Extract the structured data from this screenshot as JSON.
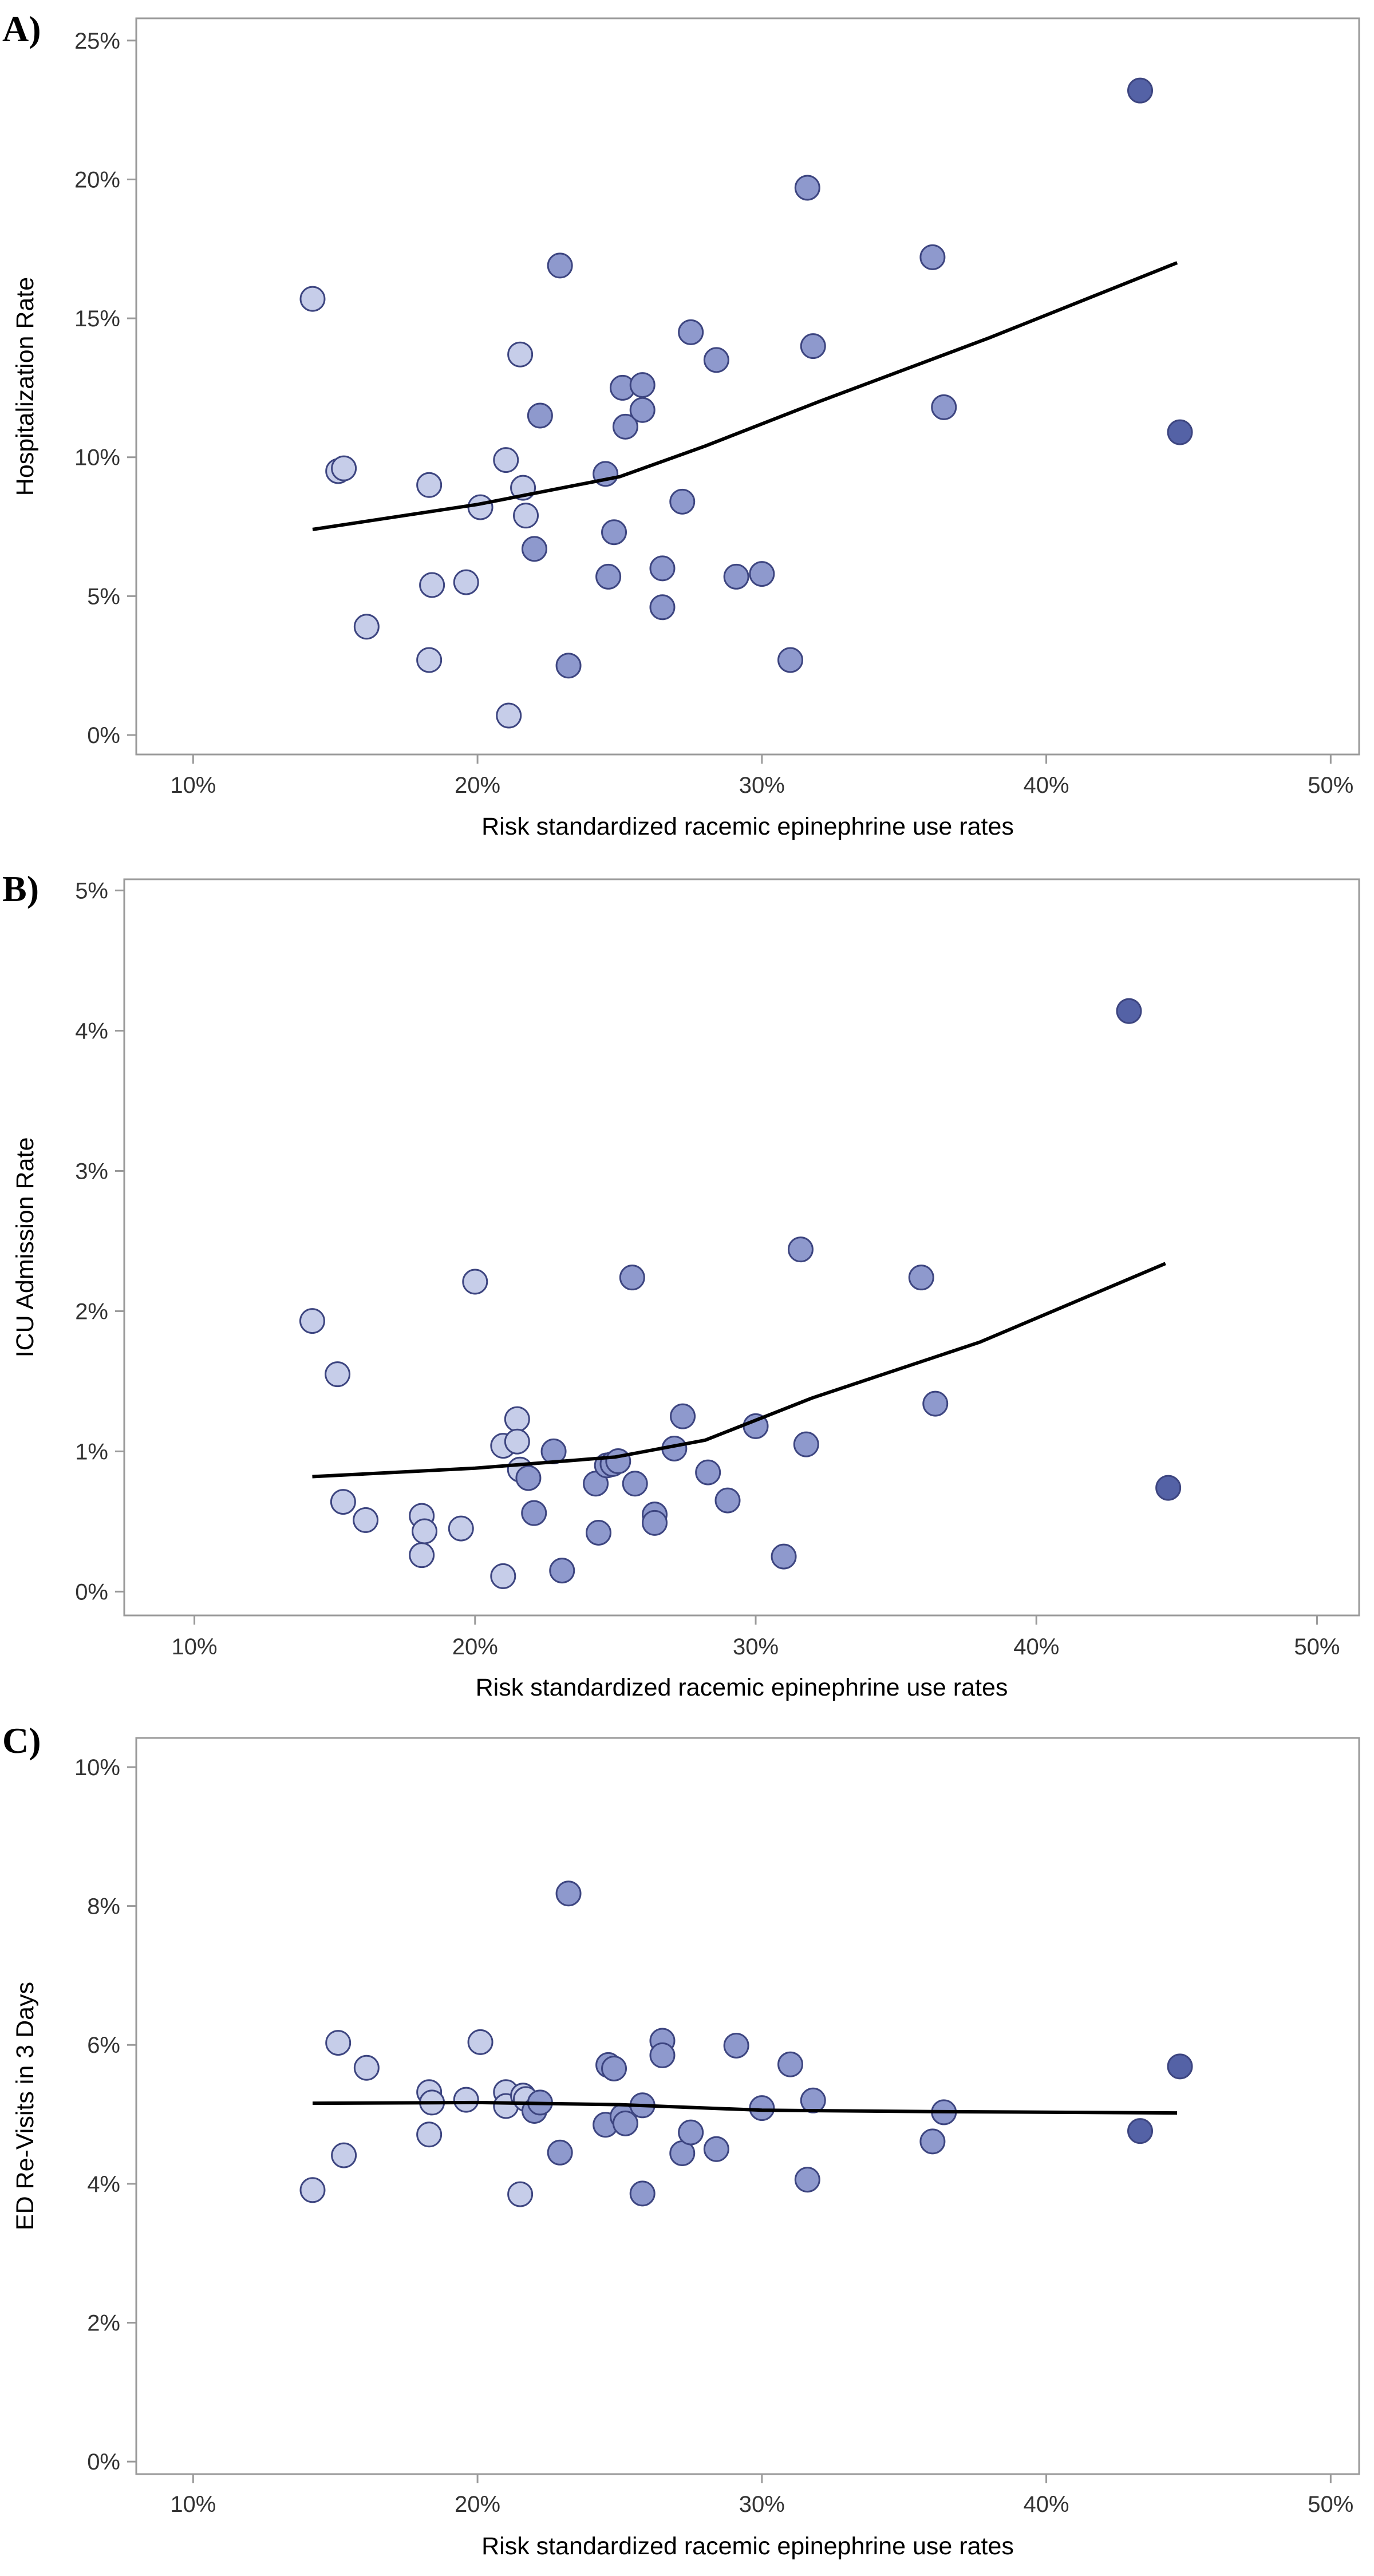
{
  "colors": {
    "light": "#c6cde9",
    "medium": "#8e99cd",
    "dark": "#5462a6",
    "outline": "#3d4580",
    "line": "#000000",
    "frame": "#9a9a9a"
  },
  "chart_data": [
    {
      "type": "scatter",
      "panel_label": "A)",
      "xlabel": "Risk standardized racemic epinephrine use rates",
      "ylabel": "Hospitalization Rate",
      "xlim": [
        0.08,
        0.51
      ],
      "ylim": [
        -0.007,
        0.258
      ],
      "x_ticks": [
        0.1,
        0.2,
        0.3,
        0.4,
        0.5
      ],
      "x_tick_labels": [
        "10%",
        "20%",
        "30%",
        "40%",
        "50%"
      ],
      "y_ticks": [
        0,
        0.05,
        0.1,
        0.15,
        0.2,
        0.25
      ],
      "y_tick_labels": [
        "0%",
        "5%",
        "10%",
        "15%",
        "20%",
        "25%"
      ],
      "grid": false,
      "legend": "none",
      "points": [
        {
          "x": 0.142,
          "y": 0.157,
          "shade": "light"
        },
        {
          "x": 0.151,
          "y": 0.095,
          "shade": "light"
        },
        {
          "x": 0.153,
          "y": 0.096,
          "shade": "light"
        },
        {
          "x": 0.161,
          "y": 0.039,
          "shade": "light"
        },
        {
          "x": 0.183,
          "y": 0.027,
          "shade": "light"
        },
        {
          "x": 0.183,
          "y": 0.09,
          "shade": "light"
        },
        {
          "x": 0.184,
          "y": 0.054,
          "shade": "light"
        },
        {
          "x": 0.196,
          "y": 0.055,
          "shade": "light"
        },
        {
          "x": 0.201,
          "y": 0.082,
          "shade": "light"
        },
        {
          "x": 0.21,
          "y": 0.099,
          "shade": "light"
        },
        {
          "x": 0.211,
          "y": 0.007,
          "shade": "light"
        },
        {
          "x": 0.215,
          "y": 0.137,
          "shade": "light"
        },
        {
          "x": 0.216,
          "y": 0.089,
          "shade": "light"
        },
        {
          "x": 0.217,
          "y": 0.079,
          "shade": "light"
        },
        {
          "x": 0.22,
          "y": 0.067,
          "shade": "medium"
        },
        {
          "x": 0.222,
          "y": 0.115,
          "shade": "medium"
        },
        {
          "x": 0.229,
          "y": 0.169,
          "shade": "medium"
        },
        {
          "x": 0.232,
          "y": 0.025,
          "shade": "medium"
        },
        {
          "x": 0.245,
          "y": 0.094,
          "shade": "medium"
        },
        {
          "x": 0.246,
          "y": 0.057,
          "shade": "medium"
        },
        {
          "x": 0.248,
          "y": 0.073,
          "shade": "medium"
        },
        {
          "x": 0.251,
          "y": 0.125,
          "shade": "medium"
        },
        {
          "x": 0.252,
          "y": 0.111,
          "shade": "medium"
        },
        {
          "x": 0.258,
          "y": 0.126,
          "shade": "medium"
        },
        {
          "x": 0.258,
          "y": 0.117,
          "shade": "medium"
        },
        {
          "x": 0.265,
          "y": 0.06,
          "shade": "medium"
        },
        {
          "x": 0.265,
          "y": 0.046,
          "shade": "medium"
        },
        {
          "x": 0.272,
          "y": 0.084,
          "shade": "medium"
        },
        {
          "x": 0.275,
          "y": 0.145,
          "shade": "medium"
        },
        {
          "x": 0.284,
          "y": 0.135,
          "shade": "medium"
        },
        {
          "x": 0.291,
          "y": 0.057,
          "shade": "medium"
        },
        {
          "x": 0.3,
          "y": 0.058,
          "shade": "medium"
        },
        {
          "x": 0.31,
          "y": 0.027,
          "shade": "medium"
        },
        {
          "x": 0.316,
          "y": 0.197,
          "shade": "medium"
        },
        {
          "x": 0.318,
          "y": 0.14,
          "shade": "medium"
        },
        {
          "x": 0.36,
          "y": 0.172,
          "shade": "medium"
        },
        {
          "x": 0.364,
          "y": 0.118,
          "shade": "medium"
        },
        {
          "x": 0.433,
          "y": 0.232,
          "shade": "dark"
        },
        {
          "x": 0.447,
          "y": 0.109,
          "shade": "dark"
        }
      ],
      "fit_line": [
        {
          "x": 0.142,
          "y": 0.074
        },
        {
          "x": 0.2,
          "y": 0.083
        },
        {
          "x": 0.25,
          "y": 0.093
        },
        {
          "x": 0.28,
          "y": 0.104
        },
        {
          "x": 0.32,
          "y": 0.12
        },
        {
          "x": 0.38,
          "y": 0.143
        },
        {
          "x": 0.446,
          "y": 0.17
        }
      ]
    },
    {
      "type": "scatter",
      "panel_label": "B)",
      "xlabel": "Risk standardized racemic epinephrine use rates",
      "ylabel": "ICU Admission Rate",
      "xlim": [
        0.075,
        0.515
      ],
      "ylim": [
        -0.0017,
        0.0508
      ],
      "x_ticks": [
        0.1,
        0.2,
        0.3,
        0.4,
        0.5
      ],
      "x_tick_labels": [
        "10%",
        "20%",
        "30%",
        "40%",
        "50%"
      ],
      "y_ticks": [
        0,
        0.01,
        0.02,
        0.03,
        0.04,
        0.05
      ],
      "y_tick_labels": [
        "0%",
        "1%",
        "2%",
        "3%",
        "4%",
        "5%"
      ],
      "grid": false,
      "legend": "none",
      "points": [
        {
          "x": 0.142,
          "y": 0.0193,
          "shade": "light"
        },
        {
          "x": 0.151,
          "y": 0.0155,
          "shade": "light"
        },
        {
          "x": 0.153,
          "y": 0.0064,
          "shade": "light"
        },
        {
          "x": 0.161,
          "y": 0.0051,
          "shade": "light"
        },
        {
          "x": 0.181,
          "y": 0.0054,
          "shade": "light"
        },
        {
          "x": 0.181,
          "y": 0.0026,
          "shade": "light"
        },
        {
          "x": 0.182,
          "y": 0.0043,
          "shade": "light"
        },
        {
          "x": 0.195,
          "y": 0.0045,
          "shade": "light"
        },
        {
          "x": 0.2,
          "y": 0.0221,
          "shade": "light"
        },
        {
          "x": 0.21,
          "y": 0.0104,
          "shade": "light"
        },
        {
          "x": 0.21,
          "y": 0.0011,
          "shade": "light"
        },
        {
          "x": 0.215,
          "y": 0.0123,
          "shade": "light"
        },
        {
          "x": 0.215,
          "y": 0.0107,
          "shade": "light"
        },
        {
          "x": 0.216,
          "y": 0.0087,
          "shade": "light"
        },
        {
          "x": 0.219,
          "y": 0.0081,
          "shade": "medium"
        },
        {
          "x": 0.221,
          "y": 0.0056,
          "shade": "medium"
        },
        {
          "x": 0.228,
          "y": 0.01,
          "shade": "medium"
        },
        {
          "x": 0.231,
          "y": 0.0015,
          "shade": "medium"
        },
        {
          "x": 0.243,
          "y": 0.0077,
          "shade": "medium"
        },
        {
          "x": 0.244,
          "y": 0.0042,
          "shade": "medium"
        },
        {
          "x": 0.247,
          "y": 0.009,
          "shade": "medium"
        },
        {
          "x": 0.249,
          "y": 0.0091,
          "shade": "medium"
        },
        {
          "x": 0.251,
          "y": 0.0093,
          "shade": "medium"
        },
        {
          "x": 0.256,
          "y": 0.0224,
          "shade": "medium"
        },
        {
          "x": 0.257,
          "y": 0.0077,
          "shade": "medium"
        },
        {
          "x": 0.264,
          "y": 0.0055,
          "shade": "medium"
        },
        {
          "x": 0.264,
          "y": 0.0049,
          "shade": "medium"
        },
        {
          "x": 0.271,
          "y": 0.0102,
          "shade": "medium"
        },
        {
          "x": 0.274,
          "y": 0.0125,
          "shade": "medium"
        },
        {
          "x": 0.283,
          "y": 0.0085,
          "shade": "medium"
        },
        {
          "x": 0.29,
          "y": 0.0065,
          "shade": "medium"
        },
        {
          "x": 0.3,
          "y": 0.0118,
          "shade": "medium"
        },
        {
          "x": 0.31,
          "y": 0.0025,
          "shade": "medium"
        },
        {
          "x": 0.316,
          "y": 0.0244,
          "shade": "medium"
        },
        {
          "x": 0.318,
          "y": 0.0105,
          "shade": "medium"
        },
        {
          "x": 0.359,
          "y": 0.0224,
          "shade": "medium"
        },
        {
          "x": 0.364,
          "y": 0.0134,
          "shade": "medium"
        },
        {
          "x": 0.433,
          "y": 0.0414,
          "shade": "dark"
        },
        {
          "x": 0.447,
          "y": 0.0074,
          "shade": "dark"
        }
      ],
      "fit_line": [
        {
          "x": 0.142,
          "y": 0.0082
        },
        {
          "x": 0.2,
          "y": 0.0088
        },
        {
          "x": 0.25,
          "y": 0.0096
        },
        {
          "x": 0.282,
          "y": 0.0108
        },
        {
          "x": 0.32,
          "y": 0.0138
        },
        {
          "x": 0.38,
          "y": 0.0178
        },
        {
          "x": 0.446,
          "y": 0.0234
        }
      ]
    },
    {
      "type": "scatter",
      "panel_label": "C)",
      "xlabel": "Risk standardized racemic epinephrine use rates",
      "ylabel": "ED Re-Visits in 3 Days",
      "xlim": [
        0.08,
        0.51
      ],
      "ylim": [
        -0.0018,
        0.1042
      ],
      "x_ticks": [
        0.1,
        0.2,
        0.3,
        0.4,
        0.5
      ],
      "x_tick_labels": [
        "10%",
        "20%",
        "30%",
        "40%",
        "50%"
      ],
      "y_ticks": [
        0,
        0.02,
        0.04,
        0.06,
        0.08,
        0.1
      ],
      "y_tick_labels": [
        "0%",
        "2%",
        "4%",
        "6%",
        "8%",
        "10%"
      ],
      "grid": false,
      "legend": "none",
      "points": [
        {
          "x": 0.142,
          "y": 0.0391,
          "shade": "light"
        },
        {
          "x": 0.151,
          "y": 0.0603,
          "shade": "light"
        },
        {
          "x": 0.153,
          "y": 0.0441,
          "shade": "light"
        },
        {
          "x": 0.161,
          "y": 0.0567,
          "shade": "light"
        },
        {
          "x": 0.183,
          "y": 0.0532,
          "shade": "light"
        },
        {
          "x": 0.183,
          "y": 0.0471,
          "shade": "light"
        },
        {
          "x": 0.184,
          "y": 0.0517,
          "shade": "light"
        },
        {
          "x": 0.196,
          "y": 0.0521,
          "shade": "light"
        },
        {
          "x": 0.201,
          "y": 0.0604,
          "shade": "light"
        },
        {
          "x": 0.21,
          "y": 0.0532,
          "shade": "light"
        },
        {
          "x": 0.21,
          "y": 0.0512,
          "shade": "light"
        },
        {
          "x": 0.215,
          "y": 0.0385,
          "shade": "light"
        },
        {
          "x": 0.216,
          "y": 0.0527,
          "shade": "light"
        },
        {
          "x": 0.217,
          "y": 0.0522,
          "shade": "light"
        },
        {
          "x": 0.22,
          "y": 0.0505,
          "shade": "medium"
        },
        {
          "x": 0.222,
          "y": 0.0517,
          "shade": "medium"
        },
        {
          "x": 0.229,
          "y": 0.0445,
          "shade": "medium"
        },
        {
          "x": 0.232,
          "y": 0.0818,
          "shade": "medium"
        },
        {
          "x": 0.245,
          "y": 0.0485,
          "shade": "medium"
        },
        {
          "x": 0.246,
          "y": 0.0571,
          "shade": "medium"
        },
        {
          "x": 0.248,
          "y": 0.0566,
          "shade": "medium"
        },
        {
          "x": 0.251,
          "y": 0.0497,
          "shade": "medium"
        },
        {
          "x": 0.252,
          "y": 0.0487,
          "shade": "medium"
        },
        {
          "x": 0.258,
          "y": 0.0386,
          "shade": "medium"
        },
        {
          "x": 0.258,
          "y": 0.0513,
          "shade": "medium"
        },
        {
          "x": 0.265,
          "y": 0.0606,
          "shade": "medium"
        },
        {
          "x": 0.265,
          "y": 0.0585,
          "shade": "medium"
        },
        {
          "x": 0.272,
          "y": 0.0444,
          "shade": "medium"
        },
        {
          "x": 0.275,
          "y": 0.0474,
          "shade": "medium"
        },
        {
          "x": 0.284,
          "y": 0.045,
          "shade": "medium"
        },
        {
          "x": 0.291,
          "y": 0.0599,
          "shade": "medium"
        },
        {
          "x": 0.3,
          "y": 0.0509,
          "shade": "medium"
        },
        {
          "x": 0.31,
          "y": 0.0572,
          "shade": "medium"
        },
        {
          "x": 0.316,
          "y": 0.0406,
          "shade": "medium"
        },
        {
          "x": 0.318,
          "y": 0.052,
          "shade": "medium"
        },
        {
          "x": 0.36,
          "y": 0.0461,
          "shade": "medium"
        },
        {
          "x": 0.364,
          "y": 0.0503,
          "shade": "medium"
        },
        {
          "x": 0.433,
          "y": 0.0476,
          "shade": "dark"
        },
        {
          "x": 0.447,
          "y": 0.0569,
          "shade": "dark"
        }
      ],
      "fit_line": [
        {
          "x": 0.142,
          "y": 0.0516
        },
        {
          "x": 0.2,
          "y": 0.0517
        },
        {
          "x": 0.25,
          "y": 0.0514
        },
        {
          "x": 0.3,
          "y": 0.0506
        },
        {
          "x": 0.36,
          "y": 0.0504
        },
        {
          "x": 0.446,
          "y": 0.0502
        }
      ]
    }
  ]
}
